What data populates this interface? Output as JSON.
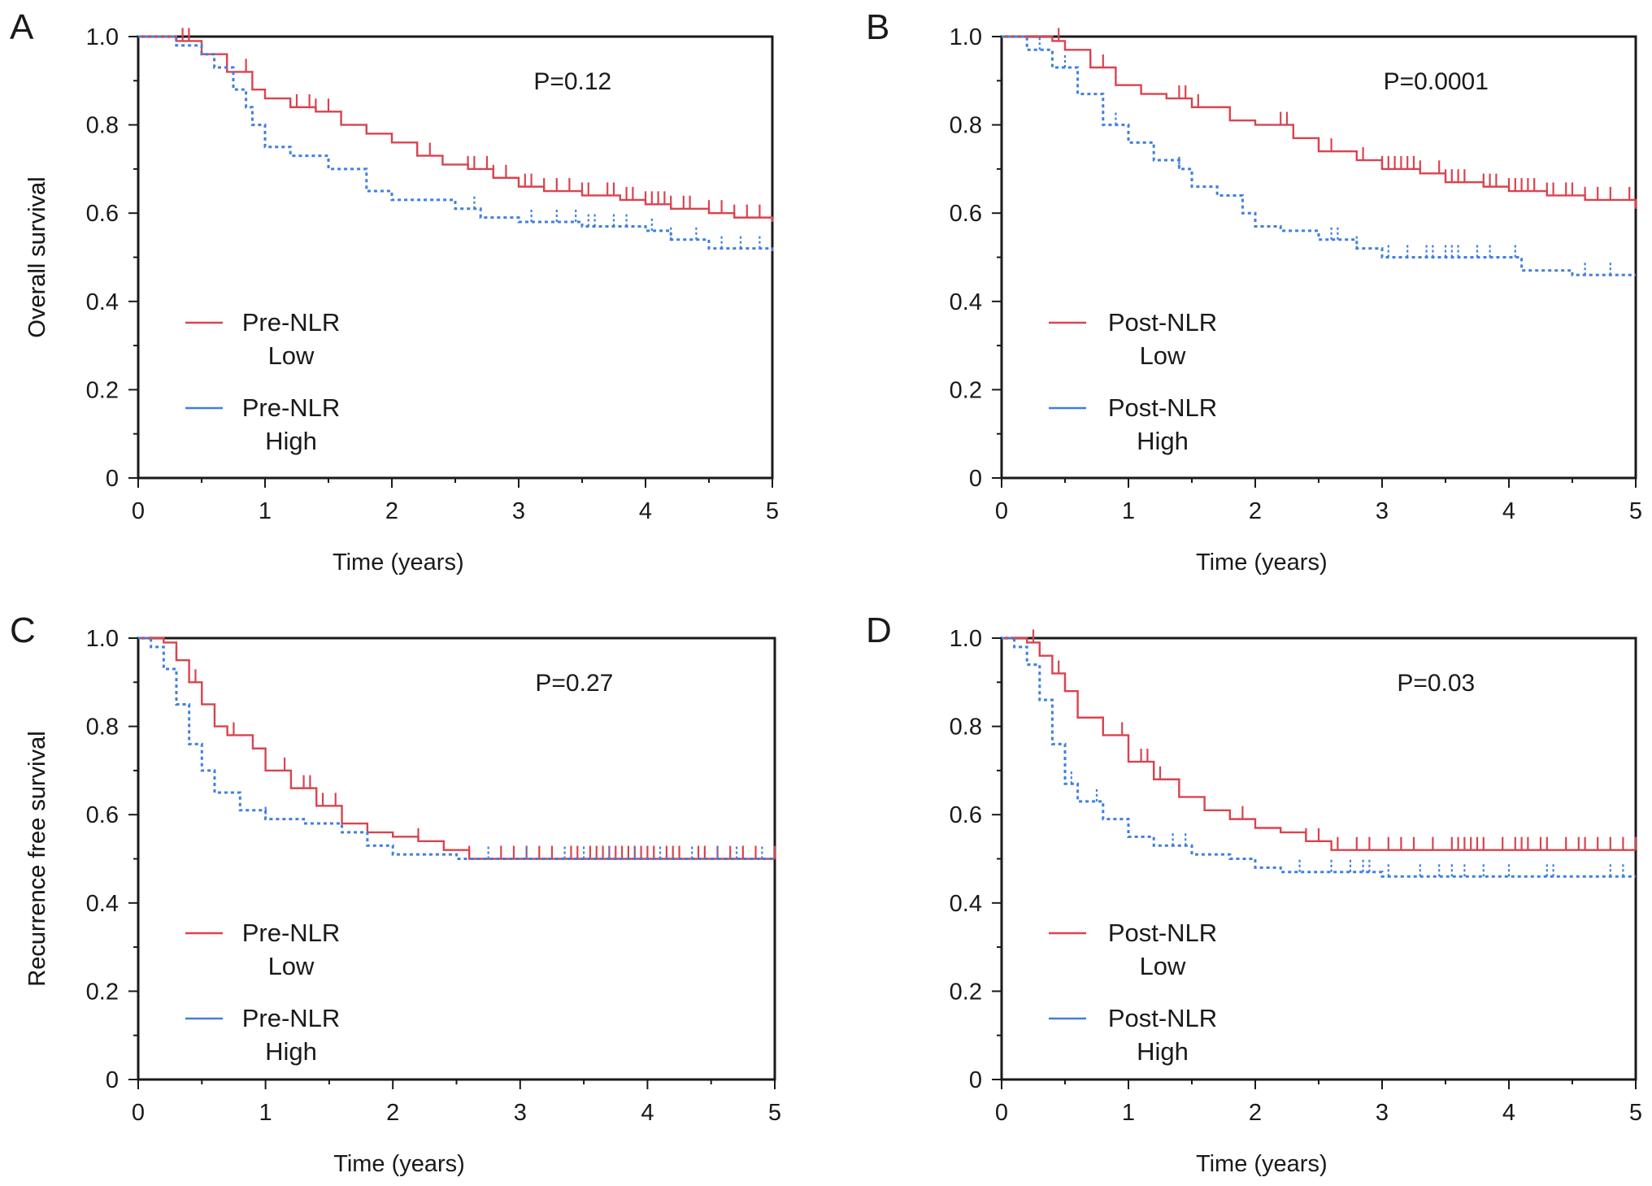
{
  "colors": {
    "low": "#d9434f",
    "high": "#3f7fde",
    "axis": "#1a1a1a",
    "background": "#ffffff"
  },
  "chart_data": [
    {
      "panel": "A",
      "type": "line",
      "subtype": "kaplan-meier",
      "title": "",
      "xlabel": "Time (years)",
      "ylabel": "Overall survival",
      "xlim": [
        0,
        5
      ],
      "ylim": [
        0,
        1
      ],
      "xticks": [
        "0",
        "1",
        "2",
        "3",
        "4",
        "5"
      ],
      "yticks": [
        "0",
        "0.2",
        "0.4",
        "0.6",
        "0.8",
        "1.0"
      ],
      "p_value": "P=0.12",
      "legend": [
        {
          "key": "low",
          "line1": "Pre-NLR",
          "line2": "Low"
        },
        {
          "key": "high",
          "line1": "Pre-NLR",
          "line2": "High"
        }
      ],
      "series": [
        {
          "key": "low",
          "name": "Pre-NLR Low",
          "style": "solid",
          "x": [
            0,
            0.3,
            0.5,
            0.7,
            0.9,
            1.0,
            1.2,
            1.4,
            1.6,
            1.8,
            2.0,
            2.2,
            2.4,
            2.6,
            2.8,
            3.0,
            3.2,
            3.5,
            3.8,
            4.0,
            4.2,
            4.5,
            4.7,
            5.0
          ],
          "y": [
            1.0,
            0.99,
            0.96,
            0.92,
            0.88,
            0.86,
            0.84,
            0.83,
            0.8,
            0.78,
            0.76,
            0.73,
            0.71,
            0.7,
            0.68,
            0.66,
            0.65,
            0.64,
            0.63,
            0.62,
            0.61,
            0.6,
            0.59,
            0.58
          ],
          "censor_x": [
            0.35,
            0.4,
            0.85,
            1.25,
            1.35,
            1.4,
            1.5,
            2.3,
            2.6,
            2.65,
            2.75,
            2.8,
            2.9,
            3.05,
            3.1,
            3.2,
            3.3,
            3.4,
            3.5,
            3.55,
            3.7,
            3.75,
            3.85,
            3.9,
            4.0,
            4.05,
            4.1,
            4.15,
            4.2,
            4.3,
            4.35,
            4.5,
            4.6,
            4.7,
            4.8,
            4.9
          ]
        },
        {
          "key": "high",
          "name": "Pre-NLR High",
          "style": "dotted",
          "x": [
            0,
            0.3,
            0.5,
            0.6,
            0.75,
            0.85,
            0.9,
            1.0,
            1.2,
            1.5,
            1.8,
            2.0,
            2.5,
            2.7,
            3.0,
            3.5,
            4.0,
            4.2,
            4.5,
            5.0
          ],
          "y": [
            1.0,
            0.98,
            0.96,
            0.93,
            0.88,
            0.84,
            0.8,
            0.75,
            0.73,
            0.7,
            0.65,
            0.63,
            0.61,
            0.59,
            0.58,
            0.57,
            0.56,
            0.54,
            0.52,
            0.51
          ],
          "censor_x": [
            2.65,
            3.1,
            3.3,
            3.45,
            3.55,
            3.6,
            3.75,
            3.85,
            4.05,
            4.2,
            4.4,
            4.6,
            4.75,
            4.9
          ]
        }
      ]
    },
    {
      "panel": "B",
      "type": "line",
      "subtype": "kaplan-meier",
      "title": "",
      "xlabel": "Time (years)",
      "ylabel": "Overall survival",
      "xlim": [
        0,
        5
      ],
      "ylim": [
        0,
        1
      ],
      "xticks": [
        "0",
        "1",
        "2",
        "3",
        "4",
        "5"
      ],
      "yticks": [
        "0",
        "0.2",
        "0.4",
        "0.6",
        "0.8",
        "1.0"
      ],
      "p_value": "P=0.0001",
      "legend": [
        {
          "key": "low",
          "line1": "Post-NLR",
          "line2": "Low"
        },
        {
          "key": "high",
          "line1": "Post-NLR",
          "line2": "High"
        }
      ],
      "series": [
        {
          "key": "low",
          "name": "Post-NLR Low",
          "style": "solid",
          "x": [
            0,
            0.4,
            0.5,
            0.7,
            0.9,
            1.1,
            1.3,
            1.5,
            1.8,
            2.0,
            2.3,
            2.5,
            2.8,
            3.0,
            3.3,
            3.5,
            3.8,
            4.0,
            4.3,
            4.6,
            5.0
          ],
          "y": [
            1.0,
            0.99,
            0.97,
            0.93,
            0.89,
            0.87,
            0.86,
            0.84,
            0.81,
            0.8,
            0.77,
            0.74,
            0.72,
            0.7,
            0.69,
            0.67,
            0.66,
            0.65,
            0.64,
            0.63,
            0.61
          ],
          "censor_x": [
            0.45,
            0.7,
            0.8,
            1.4,
            1.45,
            1.55,
            2.2,
            2.25,
            2.5,
            2.6,
            2.85,
            3.0,
            3.05,
            3.1,
            3.15,
            3.2,
            3.25,
            3.3,
            3.45,
            3.5,
            3.55,
            3.6,
            3.65,
            3.8,
            3.85,
            3.9,
            4.0,
            4.05,
            4.1,
            4.15,
            4.2,
            4.3,
            4.35,
            4.45,
            4.5,
            4.6,
            4.7,
            4.8,
            4.95
          ]
        },
        {
          "key": "high",
          "name": "Post-NLR High",
          "style": "dotted",
          "x": [
            0,
            0.2,
            0.4,
            0.6,
            0.8,
            1.0,
            1.2,
            1.4,
            1.5,
            1.7,
            1.9,
            2.0,
            2.2,
            2.5,
            2.8,
            3.0,
            3.3,
            3.6,
            4.0,
            4.1,
            4.5,
            5.0
          ],
          "y": [
            1.0,
            0.97,
            0.93,
            0.87,
            0.8,
            0.76,
            0.72,
            0.7,
            0.66,
            0.64,
            0.6,
            0.57,
            0.56,
            0.54,
            0.52,
            0.5,
            0.5,
            0.5,
            0.5,
            0.47,
            0.46,
            0.46
          ],
          "censor_x": [
            0.3,
            0.5,
            0.9,
            1.4,
            2.6,
            2.65,
            2.8,
            3.05,
            3.2,
            3.35,
            3.4,
            3.5,
            3.55,
            3.6,
            3.75,
            3.85,
            4.05,
            4.6,
            4.8
          ]
        }
      ]
    },
    {
      "panel": "C",
      "type": "line",
      "subtype": "kaplan-meier",
      "title": "",
      "xlabel": "Time (years)",
      "ylabel": "Recurrence free survival",
      "xlim": [
        0,
        5
      ],
      "ylim": [
        0,
        1
      ],
      "xticks": [
        "0",
        "1",
        "2",
        "3",
        "4",
        "5"
      ],
      "yticks": [
        "0",
        "0.2",
        "0.4",
        "0.6",
        "0.8",
        "1.0"
      ],
      "p_value": "P=0.27",
      "legend": [
        {
          "key": "low",
          "line1": "Pre-NLR",
          "line2": "Low"
        },
        {
          "key": "high",
          "line1": "Pre-NLR",
          "line2": "High"
        }
      ],
      "series": [
        {
          "key": "low",
          "name": "Pre-NLR Low",
          "style": "solid",
          "x": [
            0,
            0.2,
            0.3,
            0.4,
            0.5,
            0.6,
            0.7,
            0.9,
            1.0,
            1.2,
            1.4,
            1.6,
            1.8,
            2.0,
            2.2,
            2.4,
            2.6,
            5.0
          ],
          "y": [
            1.0,
            0.99,
            0.95,
            0.9,
            0.85,
            0.8,
            0.78,
            0.75,
            0.7,
            0.66,
            0.62,
            0.58,
            0.56,
            0.55,
            0.54,
            0.52,
            0.5,
            0.5
          ],
          "censor_x": [
            0.3,
            0.45,
            0.75,
            1.15,
            1.3,
            1.35,
            1.45,
            1.55,
            2.2,
            2.6,
            2.85,
            2.95,
            3.05,
            3.15,
            3.25,
            3.4,
            3.45,
            3.55,
            3.6,
            3.65,
            3.7,
            3.75,
            3.8,
            3.85,
            3.9,
            3.95,
            4.0,
            4.05,
            4.15,
            4.2,
            4.25,
            4.4,
            4.45,
            4.55,
            4.65,
            4.75,
            4.85,
            5.0
          ]
        },
        {
          "key": "high",
          "name": "Pre-NLR High",
          "style": "dotted",
          "x": [
            0,
            0.1,
            0.2,
            0.3,
            0.4,
            0.5,
            0.6,
            0.8,
            1.0,
            1.3,
            1.6,
            1.8,
            2.0,
            2.5,
            5.0
          ],
          "y": [
            1.0,
            0.98,
            0.93,
            0.85,
            0.76,
            0.7,
            0.65,
            0.61,
            0.59,
            0.58,
            0.56,
            0.53,
            0.51,
            0.5,
            0.5
          ],
          "censor_x": [
            1.0,
            2.75,
            3.05,
            3.35,
            3.5,
            3.7,
            3.9,
            4.1,
            4.35,
            4.55,
            4.7,
            4.9
          ]
        }
      ]
    },
    {
      "panel": "D",
      "type": "line",
      "subtype": "kaplan-meier",
      "title": "",
      "xlabel": "Time (years)",
      "ylabel": "Recurrence free survival",
      "xlim": [
        0,
        5
      ],
      "ylim": [
        0,
        1
      ],
      "xticks": [
        "0",
        "1",
        "2",
        "3",
        "4",
        "5"
      ],
      "yticks": [
        "0",
        "0.2",
        "0.4",
        "0.6",
        "0.8",
        "1.0"
      ],
      "p_value": "P=0.03",
      "legend": [
        {
          "key": "low",
          "line1": "Post-NLR",
          "line2": "Low"
        },
        {
          "key": "high",
          "line1": "Post-NLR",
          "line2": "High"
        }
      ],
      "series": [
        {
          "key": "low",
          "name": "Post-NLR Low",
          "style": "solid",
          "x": [
            0,
            0.2,
            0.3,
            0.4,
            0.5,
            0.6,
            0.8,
            1.0,
            1.2,
            1.4,
            1.6,
            1.8,
            2.0,
            2.2,
            2.4,
            2.6,
            5.0
          ],
          "y": [
            1.0,
            0.99,
            0.96,
            0.92,
            0.88,
            0.82,
            0.78,
            0.72,
            0.68,
            0.64,
            0.61,
            0.59,
            0.57,
            0.56,
            0.54,
            0.52,
            0.52
          ],
          "censor_x": [
            0.25,
            0.45,
            0.5,
            0.95,
            1.1,
            1.15,
            1.2,
            1.25,
            1.4,
            1.9,
            2.4,
            2.5,
            2.65,
            2.8,
            2.9,
            3.05,
            3.15,
            3.25,
            3.4,
            3.55,
            3.6,
            3.65,
            3.7,
            3.75,
            3.8,
            3.95,
            4.05,
            4.1,
            4.15,
            4.25,
            4.3,
            4.45,
            4.55,
            4.6,
            4.7,
            4.8,
            4.9,
            5.0
          ]
        },
        {
          "key": "high",
          "name": "Post-NLR High",
          "style": "dotted",
          "x": [
            0,
            0.1,
            0.2,
            0.3,
            0.4,
            0.5,
            0.6,
            0.8,
            1.0,
            1.2,
            1.5,
            1.8,
            2.0,
            2.2,
            2.6,
            3.0,
            5.0
          ],
          "y": [
            1.0,
            0.98,
            0.94,
            0.86,
            0.76,
            0.67,
            0.63,
            0.59,
            0.55,
            0.53,
            0.51,
            0.5,
            0.48,
            0.47,
            0.47,
            0.46,
            0.46
          ],
          "censor_x": [
            0.55,
            0.75,
            1.35,
            1.45,
            2.35,
            2.6,
            2.75,
            2.85,
            2.9,
            3.05,
            3.3,
            3.45,
            3.55,
            3.65,
            3.8,
            4.0,
            4.3,
            4.35,
            4.8,
            4.9
          ]
        }
      ]
    }
  ]
}
